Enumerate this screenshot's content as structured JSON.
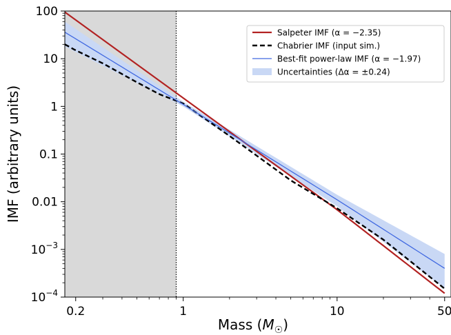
{
  "chart_data": {
    "type": "line",
    "xlabel": "Mass (M☉)",
    "ylabel": "IMF (arbitrary units)",
    "xscale": "log",
    "yscale": "log",
    "xlim": [
      0.17,
      55
    ],
    "ylim": [
      0.0001,
      100
    ],
    "grid": false,
    "legend_placement": "upper-right",
    "x_ticks": [
      {
        "value": 0.2,
        "label": "0.2"
      },
      {
        "value": 1,
        "label": "1"
      },
      {
        "value": 10,
        "label": "10"
      },
      {
        "value": 50,
        "label": "50"
      }
    ],
    "y_ticks": [
      {
        "value": 100,
        "label": "100"
      },
      {
        "value": 10,
        "label": "10"
      },
      {
        "value": 1,
        "label": "1"
      },
      {
        "value": 0.1,
        "label": "0.1"
      },
      {
        "value": 0.01,
        "label": "0.01"
      },
      {
        "value": 0.001,
        "base": "10",
        "exp": "−3"
      },
      {
        "value": 0.0001,
        "base": "10",
        "exp": "−4"
      }
    ],
    "shaded_region": {
      "x": [
        0.17,
        0.9
      ],
      "color": "#d9d9d9"
    },
    "vline": {
      "x": 0.9,
      "style": "dotted",
      "color": "#000000"
    },
    "series": [
      {
        "name": "Salpeter IMF (α = −2.35)",
        "color": "#b22222",
        "style": "solid",
        "x": [
          0.17,
          1,
          10,
          50
        ],
        "y": [
          95,
          1.5,
          0.0068,
          0.00012
        ]
      },
      {
        "name": "Chabrier IMF (input sim.)",
        "color": "#000000",
        "style": "dashed",
        "x": [
          0.17,
          0.2,
          0.3,
          0.5,
          0.7,
          1,
          2,
          5,
          10,
          20,
          50
        ],
        "y": [
          20,
          15,
          8,
          3.2,
          1.8,
          1.15,
          0.24,
          0.028,
          0.0073,
          0.0016,
          0.00015
        ]
      },
      {
        "name": "Best-fit power-law IMF (α = −1.97)",
        "color": "#4169e1",
        "style": "solid",
        "x": [
          0.17,
          1,
          10,
          50
        ],
        "y": [
          36,
          1.1,
          0.011,
          0.0004
        ]
      }
    ],
    "band": {
      "name": "Uncertainties (Δα = ±0.24)",
      "color": "#c9d8f5",
      "x": [
        0.17,
        1,
        10,
        50
      ],
      "lower": [
        18,
        1.0,
        0.008,
        0.00015
      ],
      "upper": [
        60,
        1.25,
        0.014,
        0.0008
      ]
    }
  }
}
